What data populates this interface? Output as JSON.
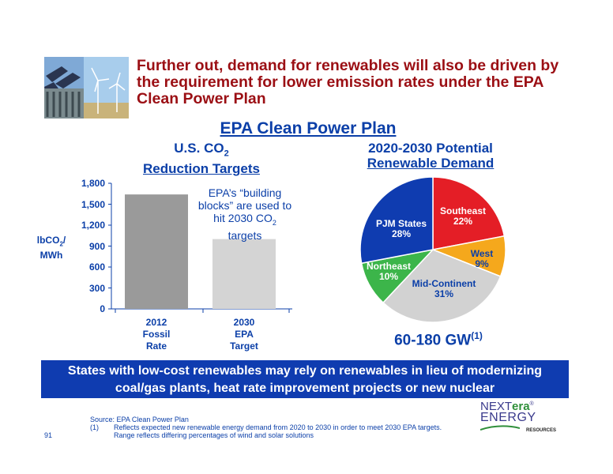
{
  "headline": "Further out, demand for renewables will also be driven by the requirement for lower emission rates under the EPA Clean Power Plan",
  "section_title": "EPA Clean Power Plan",
  "colors": {
    "accent": "#0b3fa8",
    "headline": "#9b0f14",
    "banner": "#0f3cb0"
  },
  "bar_chart": {
    "title_line1": "U.S. CO",
    "title_sub": "2",
    "title_line2": "Reduction Targets",
    "ylabel_line1": "lbCO",
    "ylabel_sub": "2",
    "ylabel_end": "/",
    "ylabel_line2": "MWh",
    "callout_line1": "EPA’s “building blocks” are used to hit 2030 CO",
    "callout_sub": "2",
    "callout_end": " targets"
  },
  "pie_chart": {
    "title_line1": "2020-2030 Potential",
    "title_line2": "Renewable Demand",
    "total_label": "60-180 GW",
    "total_footnote": "(1)"
  },
  "chart_data": [
    {
      "type": "bar",
      "categories": [
        "2012 Fossil Rate",
        "2030 EPA Target"
      ],
      "category_lines": [
        [
          "2012",
          "Fossil",
          "Rate"
        ],
        [
          "2030",
          "EPA",
          "Target"
        ]
      ],
      "values": [
        1640,
        1000
      ],
      "colors": [
        "#9a9a9a",
        "#d4d4d4"
      ],
      "ylim": [
        0,
        1800
      ],
      "yticks": [
        "0",
        "300",
        "600",
        "900",
        "1,200",
        "1,500",
        "1,800"
      ],
      "grid": false
    },
    {
      "type": "pie",
      "slices": [
        {
          "label": "Southeast",
          "value": 22,
          "text": "22%",
          "color": "#e41e26",
          "text_color": "#ffffff"
        },
        {
          "label": "West",
          "value": 9,
          "text": "9%",
          "color": "#f5a81c",
          "text_color": "#0b3fa8"
        },
        {
          "label": "Mid-Continent",
          "value": 31,
          "text": "31%",
          "color": "#d2d2d2",
          "text_color": "#0b3fa8"
        },
        {
          "label": "Northeast",
          "value": 10,
          "text": "10%",
          "color": "#3cb54a",
          "text_color": "#ffffff"
        },
        {
          "label": "PJM States",
          "value": 28,
          "text": "28%",
          "color": "#0f3cb0",
          "text_color": "#ffffff"
        }
      ]
    }
  ],
  "banner_text": "States with low-cost renewables may rely on renewables in lieu of modernizing coal/gas plants, heat rate improvement projects or new nuclear",
  "source": {
    "line1": "Source: EPA Clean Power Plan",
    "fn_num": "(1)",
    "fn_line1": "Reflects expected new renewable energy demand from 2020 to 2030 in order to meet 2030 EPA targets.",
    "fn_line2": "Range reflects differing percentages of wind and solar solutions"
  },
  "page_number": "91",
  "logo": {
    "next": "NEXT",
    "era": "era",
    "reg": "®",
    "energy": "ENERGY",
    "resources": "RESOURCES"
  }
}
